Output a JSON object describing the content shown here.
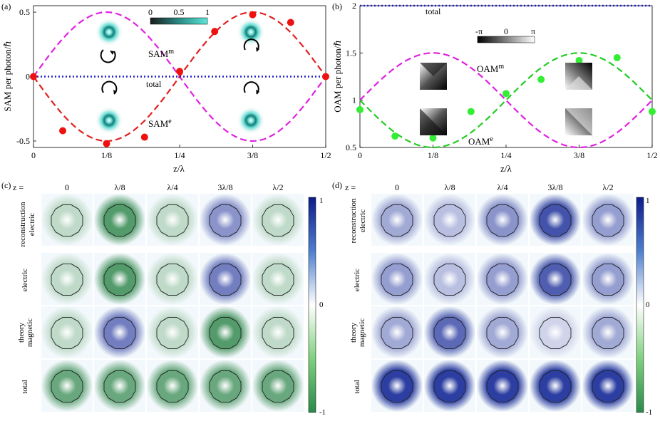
{
  "panels": {
    "a": {
      "tag": "(a)"
    },
    "b": {
      "tag": "(b)"
    },
    "c": {
      "tag": "(c)"
    },
    "d": {
      "tag": "(d)"
    }
  },
  "chart_data": [
    {
      "panel": "a",
      "type": "line",
      "xlabel": "z/λ",
      "ylabel": "SAM per photon/ℏ",
      "xlim": [
        0,
        0.5
      ],
      "ylim": [
        -0.55,
        0.55
      ],
      "xticks": [
        0,
        0.125,
        0.25,
        0.375,
        0.5
      ],
      "xtick_labels": [
        "0",
        "1/8",
        "1/4",
        "3/8",
        "1/2"
      ],
      "yticks": [
        -0.5,
        0,
        0.5
      ],
      "ytick_labels": [
        "-0.5",
        "0",
        "0.5"
      ],
      "colorbar": {
        "min": 0,
        "max": 1,
        "tick_labels": [
          "0",
          "0.5",
          "1"
        ]
      },
      "annotations": {
        "sam_m": "SAM",
        "sam_m_sup": "m",
        "sam_e": "SAM",
        "sam_e_sup": "e",
        "total": "total"
      },
      "series": [
        {
          "key": "sam_m",
          "style": "dashed",
          "color": "#e020e0",
          "x": [
            0,
            0.125,
            0.25,
            0.375,
            0.5
          ],
          "y": [
            0,
            0.5,
            0,
            -0.5,
            0
          ]
        },
        {
          "key": "sam_e",
          "style": "dashed",
          "color": "#e02020",
          "x": [
            0,
            0.125,
            0.25,
            0.375,
            0.5
          ],
          "y": [
            0,
            -0.5,
            0,
            0.5,
            0
          ]
        },
        {
          "key": "total",
          "style": "dotted",
          "color": "#2020d0",
          "x": [
            0,
            0.5
          ],
          "y": [
            0,
            0
          ]
        },
        {
          "key": "sam_e_points",
          "style": "markers",
          "color": "#ee1111",
          "x": [
            0,
            0.05,
            0.125,
            0.19,
            0.25,
            0.31,
            0.375,
            0.44,
            0.5
          ],
          "y": [
            0,
            -0.42,
            -0.52,
            -0.47,
            0.04,
            0.35,
            0.48,
            0.42,
            0
          ]
        }
      ]
    },
    {
      "panel": "b",
      "type": "line",
      "xlabel": "z/λ",
      "ylabel": "OAM per photon/ℏ",
      "xlim": [
        0,
        0.5
      ],
      "ylim": [
        0.5,
        2
      ],
      "xticks": [
        0,
        0.125,
        0.25,
        0.375,
        0.5
      ],
      "xtick_labels": [
        "0",
        "1/8",
        "1/4",
        "3/8",
        "1/2"
      ],
      "yticks": [
        0.5,
        1,
        1.5,
        2
      ],
      "ytick_labels": [
        "0.5",
        "1",
        "1.5",
        "2"
      ],
      "colorbar": {
        "tick_labels": [
          "-π",
          "0",
          "π"
        ]
      },
      "annotations": {
        "oam_m": "OAM",
        "oam_m_sup": "m",
        "oam_e": "OAM",
        "oam_e_sup": "e",
        "total": "total"
      },
      "series": [
        {
          "key": "oam_m",
          "style": "dashed",
          "color": "#e020e0",
          "x": [
            0,
            0.125,
            0.25,
            0.375,
            0.5
          ],
          "y": [
            1,
            1.5,
            1,
            0.5,
            1
          ]
        },
        {
          "key": "oam_e",
          "style": "dashed",
          "color": "#22cc22",
          "x": [
            0,
            0.125,
            0.25,
            0.375,
            0.5
          ],
          "y": [
            1,
            0.5,
            1,
            1.5,
            1
          ]
        },
        {
          "key": "total",
          "style": "dotted",
          "color": "#2020d0",
          "x": [
            0,
            0.5
          ],
          "y": [
            2,
            2
          ]
        },
        {
          "key": "oam_e_points",
          "style": "markers",
          "color": "#33ee33",
          "x": [
            0,
            0.06,
            0.125,
            0.19,
            0.25,
            0.31,
            0.375,
            0.44,
            0.5
          ],
          "y": [
            0.9,
            0.62,
            0.6,
            0.88,
            1.07,
            1.22,
            1.42,
            1.45,
            0.88
          ]
        }
      ]
    },
    {
      "panel": "c",
      "type": "heatmap",
      "z_prefix": "z =",
      "columns": [
        "0",
        "λ/8",
        "λ/4",
        "3λ/8",
        "λ/2"
      ],
      "row_labels": [
        "reconstruction\nelectric",
        "electric",
        "theory\nmagnetic",
        "total"
      ],
      "colorbar": {
        "min": -1,
        "max": 1,
        "tick_labels": [
          "1",
          "0",
          "-1"
        ]
      },
      "ring_values": [
        [
          -0.3,
          -0.8,
          -0.3,
          0.5,
          -0.3
        ],
        [
          -0.3,
          -0.8,
          -0.3,
          0.6,
          -0.3
        ],
        [
          -0.3,
          0.6,
          -0.3,
          -0.8,
          -0.3
        ],
        [
          -0.7,
          -0.7,
          -0.7,
          -0.7,
          -0.7
        ]
      ]
    },
    {
      "panel": "d",
      "type": "heatmap",
      "z_prefix": "z =",
      "columns": [
        "0",
        "λ/8",
        "λ/4",
        "3λ/8",
        "λ/2"
      ],
      "row_labels": [
        "reconstruction\nelectric",
        "electric",
        "theory\nmagnetic",
        "total"
      ],
      "colorbar": {
        "min": -1,
        "max": 1,
        "tick_labels": [
          "1",
          "0",
          "-1"
        ]
      },
      "ring_values": [
        [
          0.4,
          0.3,
          0.5,
          0.8,
          0.45
        ],
        [
          0.45,
          0.3,
          0.45,
          0.75,
          0.45
        ],
        [
          0.4,
          0.7,
          0.4,
          0.2,
          0.4
        ],
        [
          0.9,
          0.9,
          0.9,
          0.9,
          0.9
        ]
      ]
    }
  ]
}
